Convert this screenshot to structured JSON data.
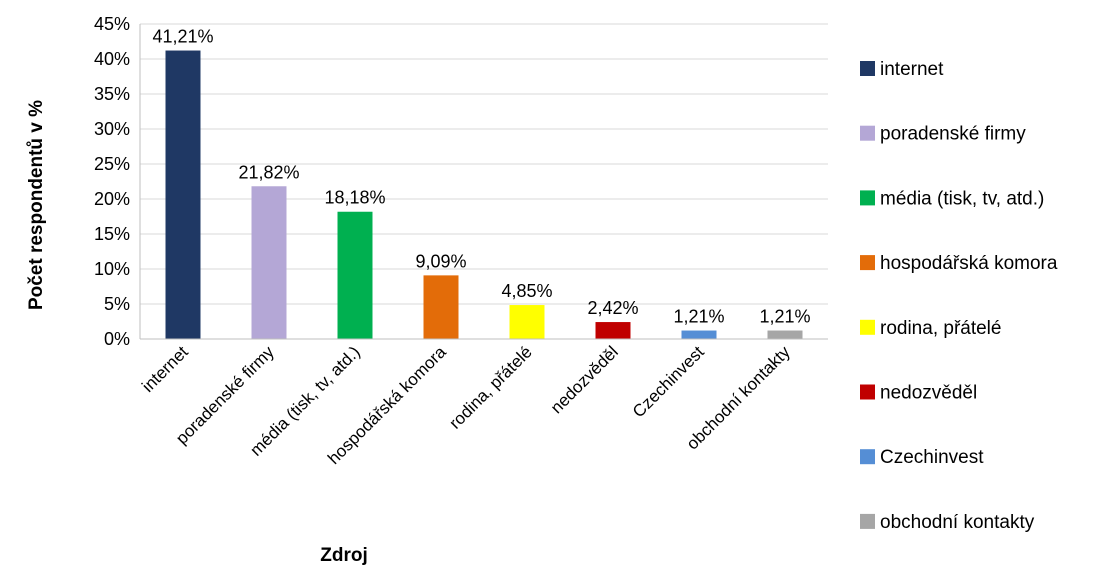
{
  "chart_data": {
    "type": "bar",
    "categories": [
      "internet",
      "poradenské firmy",
      "média (tisk, tv, atd.)",
      "hospodářská komora",
      "rodina, přátelé",
      "nedozvěděl",
      "Czechinvest",
      "obchodní kontakty"
    ],
    "values": [
      41.21,
      21.82,
      18.18,
      9.09,
      4.85,
      2.42,
      1.21,
      1.21
    ],
    "data_labels": [
      "41,21%",
      "21,82%",
      "18,18%",
      "9,09%",
      "4,85%",
      "2,42%",
      "1,21%",
      "1,21%"
    ],
    "colors": [
      "#1f3864",
      "#b4a7d6",
      "#00b050",
      "#e36c09",
      "#ffff00",
      "#c00000",
      "#558ed5",
      "#a6a6a6"
    ],
    "title": "",
    "xlabel": "Zdroj",
    "ylabel": "Počet respondentů v %",
    "ylim": [
      0,
      45
    ],
    "yticks": [
      0,
      5,
      10,
      15,
      20,
      25,
      30,
      35,
      40,
      45
    ],
    "ytick_labels": [
      "0%",
      "5%",
      "10%",
      "15%",
      "20%",
      "25%",
      "30%",
      "35%",
      "40%",
      "45%"
    ],
    "grid": true,
    "legend": {
      "position": "right",
      "entries": [
        "internet",
        "poradenské firmy",
        "média (tisk, tv, atd.)",
        "hospodářská komora",
        "rodina, přátelé",
        "nedozvěděl",
        "Czechinvest",
        "obchodní kontakty"
      ]
    }
  }
}
